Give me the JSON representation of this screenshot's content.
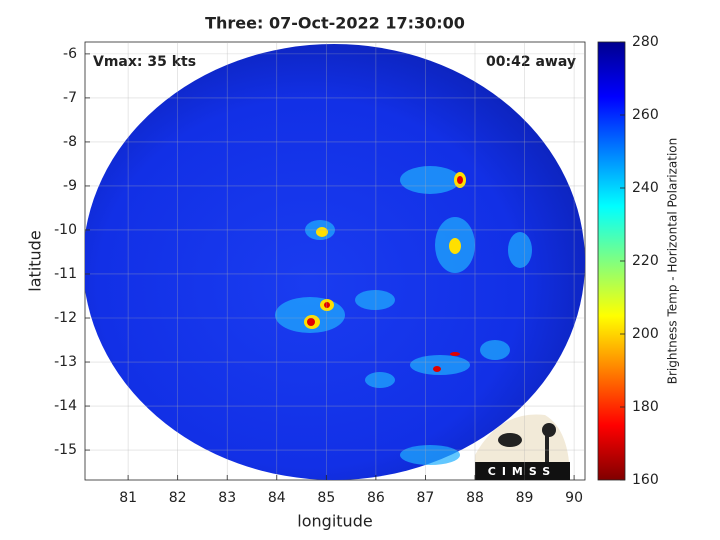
{
  "chart_data": {
    "type": "heatmap",
    "title": "Three: 07-Oct-2022 17:30:00",
    "xlabel": "longitude",
    "ylabel": "latitude",
    "xlim": [
      80.13,
      90.22
    ],
    "ylim": [
      -15.68,
      -5.73
    ],
    "xticks": [
      81,
      82,
      83,
      84,
      85,
      86,
      87,
      88,
      89,
      90
    ],
    "yticks": [
      -6,
      -7,
      -8,
      -9,
      -10,
      -11,
      -12,
      -13,
      -14,
      -15
    ],
    "grid": true,
    "annotations": [
      "Vmax: 35 kts",
      "00:42 away"
    ],
    "logo": "CIMSS",
    "colorbar": {
      "label": "Brightness Temp - Horizontal Polarization",
      "lim": [
        160,
        280
      ],
      "ticks": [
        160,
        180,
        200,
        220,
        240,
        260,
        280
      ],
      "colormap": [
        "#800000",
        "#ff0000",
        "#ff8000",
        "#ffff00",
        "#80ff80",
        "#00ffff",
        "#0080ff",
        "#0000ff",
        "#00008f"
      ]
    }
  }
}
